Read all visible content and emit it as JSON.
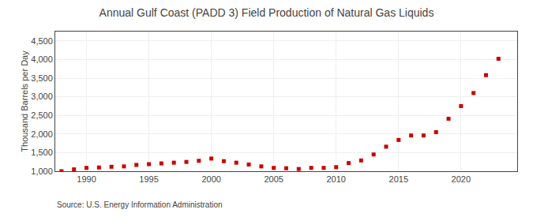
{
  "chart_data": {
    "type": "scatter",
    "title": "Annual Gulf Coast (PADD 3) Field Production of Natural Gas Liquids",
    "y_label": "Thousand Barrels per Day",
    "annotations": [
      "Source: U.S. Energy Information Administration"
    ],
    "x": [
      1988,
      1989,
      1990,
      1991,
      1992,
      1993,
      1994,
      1995,
      1996,
      1997,
      1998,
      1999,
      2000,
      2001,
      2002,
      2003,
      2004,
      2005,
      2006,
      2007,
      2008,
      2009,
      2010,
      2011,
      2012,
      2013,
      2014,
      2015,
      2016,
      2017,
      2018,
      2019,
      2020,
      2021,
      2022,
      2023
    ],
    "values": [
      1000,
      1050,
      1090,
      1100,
      1120,
      1130,
      1170,
      1190,
      1210,
      1230,
      1250,
      1280,
      1340,
      1270,
      1230,
      1180,
      1130,
      1090,
      1080,
      1060,
      1090,
      1090,
      1110,
      1220,
      1290,
      1450,
      1660,
      1840,
      1960,
      1960,
      2050,
      2410,
      2750,
      3100,
      3580,
      4020
    ],
    "color": "#cc0000",
    "marker": "square",
    "xlim": [
      1987.5,
      2024.5
    ],
    "xticks": [
      1990,
      1995,
      2000,
      2005,
      2010,
      2015,
      2020
    ],
    "ylim": [
      1000,
      4750
    ],
    "yticks": [
      {
        "value": 1000,
        "label": "1,000"
      },
      {
        "value": 1500,
        "label": "1,500"
      },
      {
        "value": 2000,
        "label": "2,000"
      },
      {
        "value": 2500,
        "label": "2,500"
      },
      {
        "value": 3000,
        "label": "3,000"
      },
      {
        "value": 3500,
        "label": "3,500"
      },
      {
        "value": 4000,
        "label": "4,000"
      },
      {
        "value": 4500,
        "label": "4,500"
      }
    ],
    "grid": true
  }
}
